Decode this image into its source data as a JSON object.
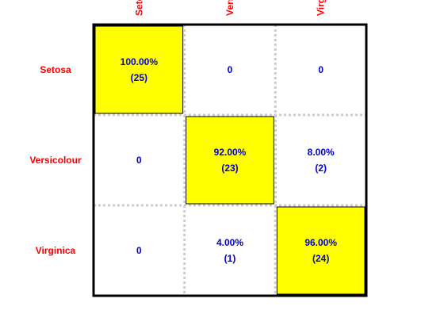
{
  "chart_data": {
    "type": "heatmap",
    "title": "",
    "xlabel": "",
    "ylabel": "",
    "row_labels": [
      "Setosa",
      "Versicolour",
      "Virginica"
    ],
    "column_labels": [
      "Setosa",
      "Versicolour",
      "Virginica"
    ],
    "column_labels_visible": [
      "Seto",
      "Versi",
      "Virgi"
    ],
    "counts": [
      [
        25,
        0,
        0
      ],
      [
        0,
        23,
        2
      ],
      [
        0,
        1,
        24
      ]
    ],
    "percentages": [
      [
        100.0,
        null,
        null
      ],
      [
        null,
        92.0,
        8.0
      ],
      [
        null,
        4.0,
        96.0
      ]
    ],
    "cells": [
      [
        {
          "pct": "100.00%",
          "count": "(25)"
        },
        {
          "pct": "0",
          "count": ""
        },
        {
          "pct": "0",
          "count": ""
        }
      ],
      [
        {
          "pct": "0",
          "count": ""
        },
        {
          "pct": "92.00%",
          "count": "(23)"
        },
        {
          "pct": "8.00%",
          "count": "(2)"
        }
      ],
      [
        {
          "pct": "0",
          "count": ""
        },
        {
          "pct": "4.00%",
          "count": "(1)"
        },
        {
          "pct": "96.00%",
          "count": "(24)"
        }
      ]
    ],
    "highlight": "diagonal",
    "grid": "dotted"
  },
  "colors": {
    "highlight_fill": "#ffff00",
    "cell_fill": "#ffffff",
    "label_color": "#ff0000",
    "value_color": "#0000cc",
    "frame_color": "#000000",
    "grid_color": "#cccccc"
  }
}
